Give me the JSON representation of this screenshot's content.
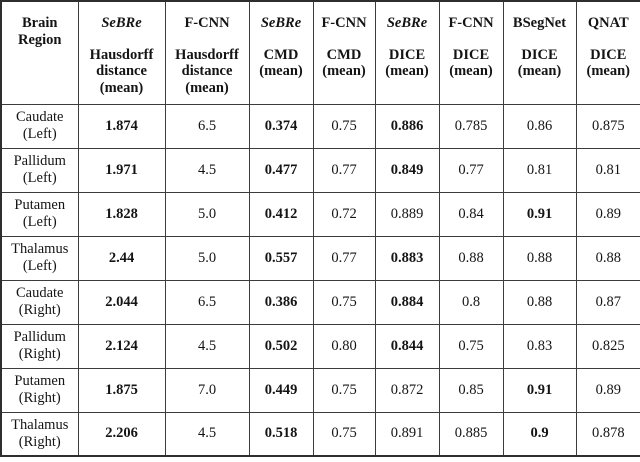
{
  "table": {
    "region_header": "Brain Region",
    "columns": [
      {
        "method": "SeBRe",
        "metric": "Hausdorff distance (mean)",
        "italic": true
      },
      {
        "method": "F-CNN",
        "metric": "Hausdorff distance (mean)",
        "italic": false
      },
      {
        "method": "SeBRe",
        "metric": "CMD (mean)",
        "italic": true
      },
      {
        "method": "F-CNN",
        "metric": "CMD (mean)",
        "italic": false
      },
      {
        "method": "SeBRe",
        "metric": "DICE (mean)",
        "italic": true
      },
      {
        "method": "F-CNN",
        "metric": "DICE (mean)",
        "italic": false
      },
      {
        "method": "BSegNet",
        "metric": "DICE (mean)",
        "italic": false
      },
      {
        "method": "QNAT",
        "metric": "DICE (mean)",
        "italic": false
      }
    ],
    "rows": [
      {
        "region": "Caudate (Left)",
        "cells": [
          {
            "v": "1.874",
            "b": true
          },
          {
            "v": "6.5",
            "b": false
          },
          {
            "v": "0.374",
            "b": true
          },
          {
            "v": "0.75",
            "b": false
          },
          {
            "v": "0.886",
            "b": true
          },
          {
            "v": "0.785",
            "b": false
          },
          {
            "v": "0.86",
            "b": false
          },
          {
            "v": "0.875",
            "b": false
          }
        ]
      },
      {
        "region": "Pallidum (Left)",
        "cells": [
          {
            "v": "1.971",
            "b": true
          },
          {
            "v": "4.5",
            "b": false
          },
          {
            "v": "0.477",
            "b": true
          },
          {
            "v": "0.77",
            "b": false
          },
          {
            "v": "0.849",
            "b": true
          },
          {
            "v": "0.77",
            "b": false
          },
          {
            "v": "0.81",
            "b": false
          },
          {
            "v": "0.81",
            "b": false
          }
        ]
      },
      {
        "region": "Putamen (Left)",
        "cells": [
          {
            "v": "1.828",
            "b": true
          },
          {
            "v": "5.0",
            "b": false
          },
          {
            "v": "0.412",
            "b": true
          },
          {
            "v": "0.72",
            "b": false
          },
          {
            "v": "0.889",
            "b": false
          },
          {
            "v": "0.84",
            "b": false
          },
          {
            "v": "0.91",
            "b": true
          },
          {
            "v": "0.89",
            "b": false
          }
        ]
      },
      {
        "region": "Thalamus (Left)",
        "cells": [
          {
            "v": "2.44",
            "b": true
          },
          {
            "v": "5.0",
            "b": false
          },
          {
            "v": "0.557",
            "b": true
          },
          {
            "v": "0.77",
            "b": false
          },
          {
            "v": "0.883",
            "b": true
          },
          {
            "v": "0.88",
            "b": false
          },
          {
            "v": "0.88",
            "b": false
          },
          {
            "v": "0.88",
            "b": false
          }
        ]
      },
      {
        "region": "Caudate (Right)",
        "cells": [
          {
            "v": "2.044",
            "b": true
          },
          {
            "v": "6.5",
            "b": false
          },
          {
            "v": "0.386",
            "b": true
          },
          {
            "v": "0.75",
            "b": false
          },
          {
            "v": "0.884",
            "b": true
          },
          {
            "v": "0.8",
            "b": false
          },
          {
            "v": "0.88",
            "b": false
          },
          {
            "v": "0.87",
            "b": false
          }
        ]
      },
      {
        "region": "Pallidum (Right)",
        "cells": [
          {
            "v": "2.124",
            "b": true
          },
          {
            "v": "4.5",
            "b": false
          },
          {
            "v": "0.502",
            "b": true
          },
          {
            "v": "0.80",
            "b": false
          },
          {
            "v": "0.844",
            "b": true
          },
          {
            "v": "0.75",
            "b": false
          },
          {
            "v": "0.83",
            "b": false
          },
          {
            "v": "0.825",
            "b": false
          }
        ]
      },
      {
        "region": "Putamen (Right)",
        "cells": [
          {
            "v": "1.875",
            "b": true
          },
          {
            "v": "7.0",
            "b": false
          },
          {
            "v": "0.449",
            "b": true
          },
          {
            "v": "0.75",
            "b": false
          },
          {
            "v": "0.872",
            "b": false
          },
          {
            "v": "0.85",
            "b": false
          },
          {
            "v": "0.91",
            "b": true
          },
          {
            "v": "0.89",
            "b": false
          }
        ]
      },
      {
        "region": "Thalamus (Right)",
        "cells": [
          {
            "v": "2.206",
            "b": true
          },
          {
            "v": "4.5",
            "b": false
          },
          {
            "v": "0.518",
            "b": true
          },
          {
            "v": "0.75",
            "b": false
          },
          {
            "v": "0.891",
            "b": false
          },
          {
            "v": "0.885",
            "b": false
          },
          {
            "v": "0.9",
            "b": true
          },
          {
            "v": "0.878",
            "b": false
          }
        ]
      }
    ],
    "colors": {
      "background": "#ffffff",
      "text": "#141414",
      "border": "#3c3c3c"
    }
  }
}
